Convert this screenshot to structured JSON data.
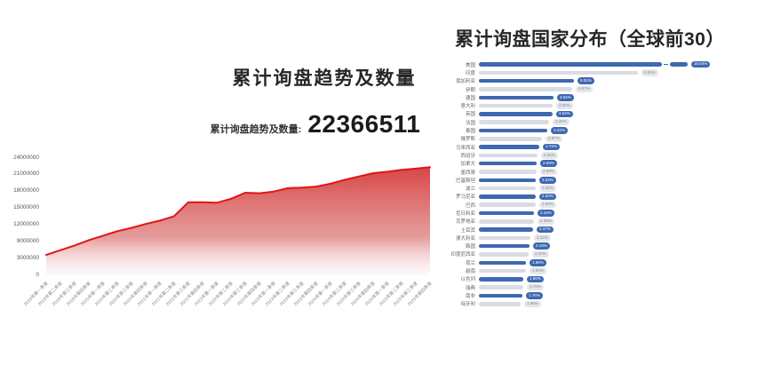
{
  "left_panel": {
    "title": "累计询盘趋势及数量",
    "stat_label": "累计询盘趋势及数量:",
    "stat_value": "22366511"
  },
  "right_panel": {
    "title": "累计询盘国家分布（全球前30）"
  },
  "colors": {
    "trend_line": "#e31414",
    "trend_fill_top": "#d63c3c",
    "bar_blue": "#3e68b1",
    "bar_gray": "#d9dce3",
    "pill_gray_bg": "#e4e6ea",
    "pill_gray_text": "#85898f",
    "axis_text": "#555555"
  },
  "chart_data": [
    {
      "type": "area",
      "title": "累计询盘趋势及数量",
      "total": 22366511,
      "categories": [
        "2019年第一季度",
        "2019年第二季度",
        "2019年第三季度",
        "2019年第四季度",
        "2020年第一季度",
        "2020年第二季度",
        "2020年第三季度",
        "2020年第四季度",
        "2021年第一季度",
        "2021年第二季度",
        "2021年第三季度",
        "2021年第四季度",
        "2022年第一季度",
        "2022年第二季度",
        "2022年第三季度",
        "2022年第四季度",
        "2023年第一季度",
        "2023年第二季度",
        "2023年第三季度",
        "2023年第四季度",
        "2024年第一季度",
        "2024年第二季度",
        "2024年第三季度",
        "2024年第四季度",
        "2025年第一季度",
        "2025年第二季度",
        "2025年第三季度",
        "2025年第四季度"
      ],
      "values": [
        4300000,
        6000000,
        7700000,
        9300000,
        10100000,
        10900000,
        11500000,
        12200000,
        12800000,
        13600000,
        16100000,
        16100000,
        16000000,
        16700000,
        17800000,
        17700000,
        18000000,
        18600000,
        18700000,
        18900000,
        19400000,
        20100000,
        20700000,
        21300000,
        21550000,
        21900000,
        22100000,
        22366511
      ],
      "y_ticks": [
        24000000,
        21000000,
        18000000,
        15000000,
        12000000,
        9000000,
        3000000,
        0
      ],
      "grid": false,
      "x_label_rotation": -45,
      "line_color": "#e31414"
    },
    {
      "type": "bar",
      "title": "累计询盘国家分布（全球前30）",
      "orientation": "horizontal",
      "truncated_first_bar": true,
      "categories": [
        "美国",
        "印度",
        "保加利亚",
        "伊朗",
        "德国",
        "意大利",
        "英国",
        "法国",
        "泰国",
        "俄罗斯",
        "马来西亚",
        "西班牙",
        "加拿大",
        "墨西哥",
        "巴基斯坦",
        "波兰",
        "罗马尼亚",
        "巴西",
        "尼日利亚",
        "克罗地亚",
        "土耳其",
        "澳大利亚",
        "韩国",
        "印度尼西亚",
        "荷兰",
        "越南",
        "以色列",
        "瑞典",
        "南非",
        "匈牙利"
      ],
      "values": [
        15.63,
        9.93,
        5.01,
        4.87,
        3.62,
        3.55,
        3.54,
        3.35,
        3.22,
        2.87,
        2.74,
        2.65,
        2.59,
        2.58,
        2.54,
        2.52,
        2.52,
        2.5,
        2.42,
        2.39,
        2.37,
        2.22,
        2.18,
        2.1,
        1.98,
        1.94,
        1.8,
        1.79,
        1.76,
        1.66
      ],
      "value_suffix": "%"
    }
  ]
}
